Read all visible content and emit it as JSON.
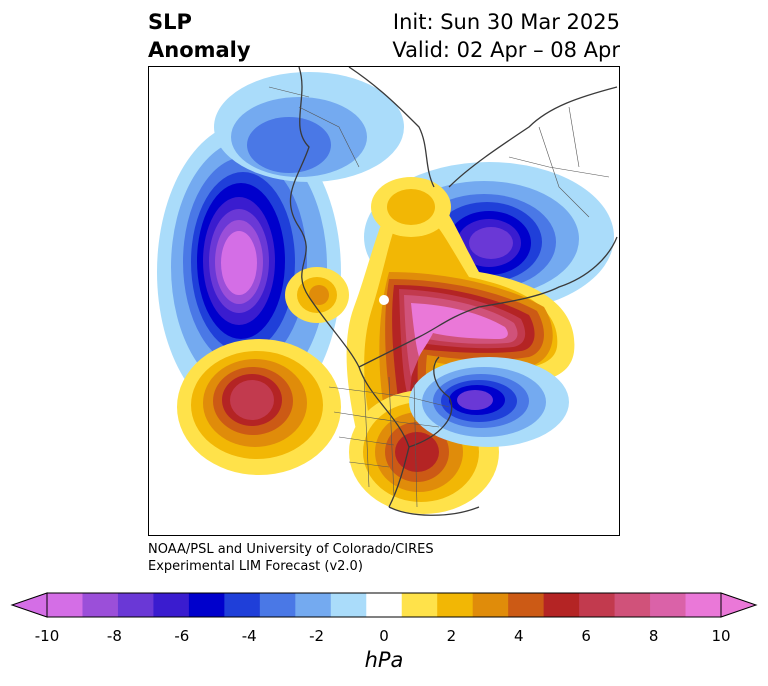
{
  "header": {
    "title_line1": "SLP",
    "title_line2": "Anomaly",
    "init": "Init: Sun 30 Mar 2025",
    "valid": "Valid: 02 Apr – 08 Apr"
  },
  "credit": {
    "line1": "NOAA/PSL and University of Colorado/CIRES",
    "line2": "Experimental LIM Forecast (v2.0)"
  },
  "colorbar": {
    "units": "hPa",
    "tick_labels": [
      "-10",
      "-8",
      "-6",
      "-4",
      "-2",
      "0",
      "2",
      "4",
      "6",
      "8",
      "10"
    ],
    "colors": [
      "#d46ee6",
      "#9b4fd9",
      "#6a38d6",
      "#3a1ccf",
      "#0000cc",
      "#1f3fd9",
      "#4a78e6",
      "#74aaf0",
      "#aadcfa",
      "#ffffff",
      "#ffe24a",
      "#f2b705",
      "#e08c0a",
      "#cc5a15",
      "#b42424",
      "#c23a4e",
      "#d0527a",
      "#da62a8",
      "#ea78d8"
    ],
    "min": -10,
    "max": 10
  },
  "map": {
    "projection": "north-polar-stereographic",
    "features": [
      {
        "name": "strong-negative-anomaly-north-pacific",
        "sign": "negative"
      },
      {
        "name": "negative-anomaly-siberia",
        "sign": "negative"
      },
      {
        "name": "negative-anomaly-north-atlantic",
        "sign": "negative"
      },
      {
        "name": "strong-positive-anomaly-canada-greenland",
        "sign": "positive"
      },
      {
        "name": "positive-anomaly-eastern-north-america",
        "sign": "positive"
      },
      {
        "name": "positive-anomaly-east-pacific",
        "sign": "positive"
      },
      {
        "name": "positive-anomaly-alaska",
        "sign": "positive"
      }
    ]
  }
}
